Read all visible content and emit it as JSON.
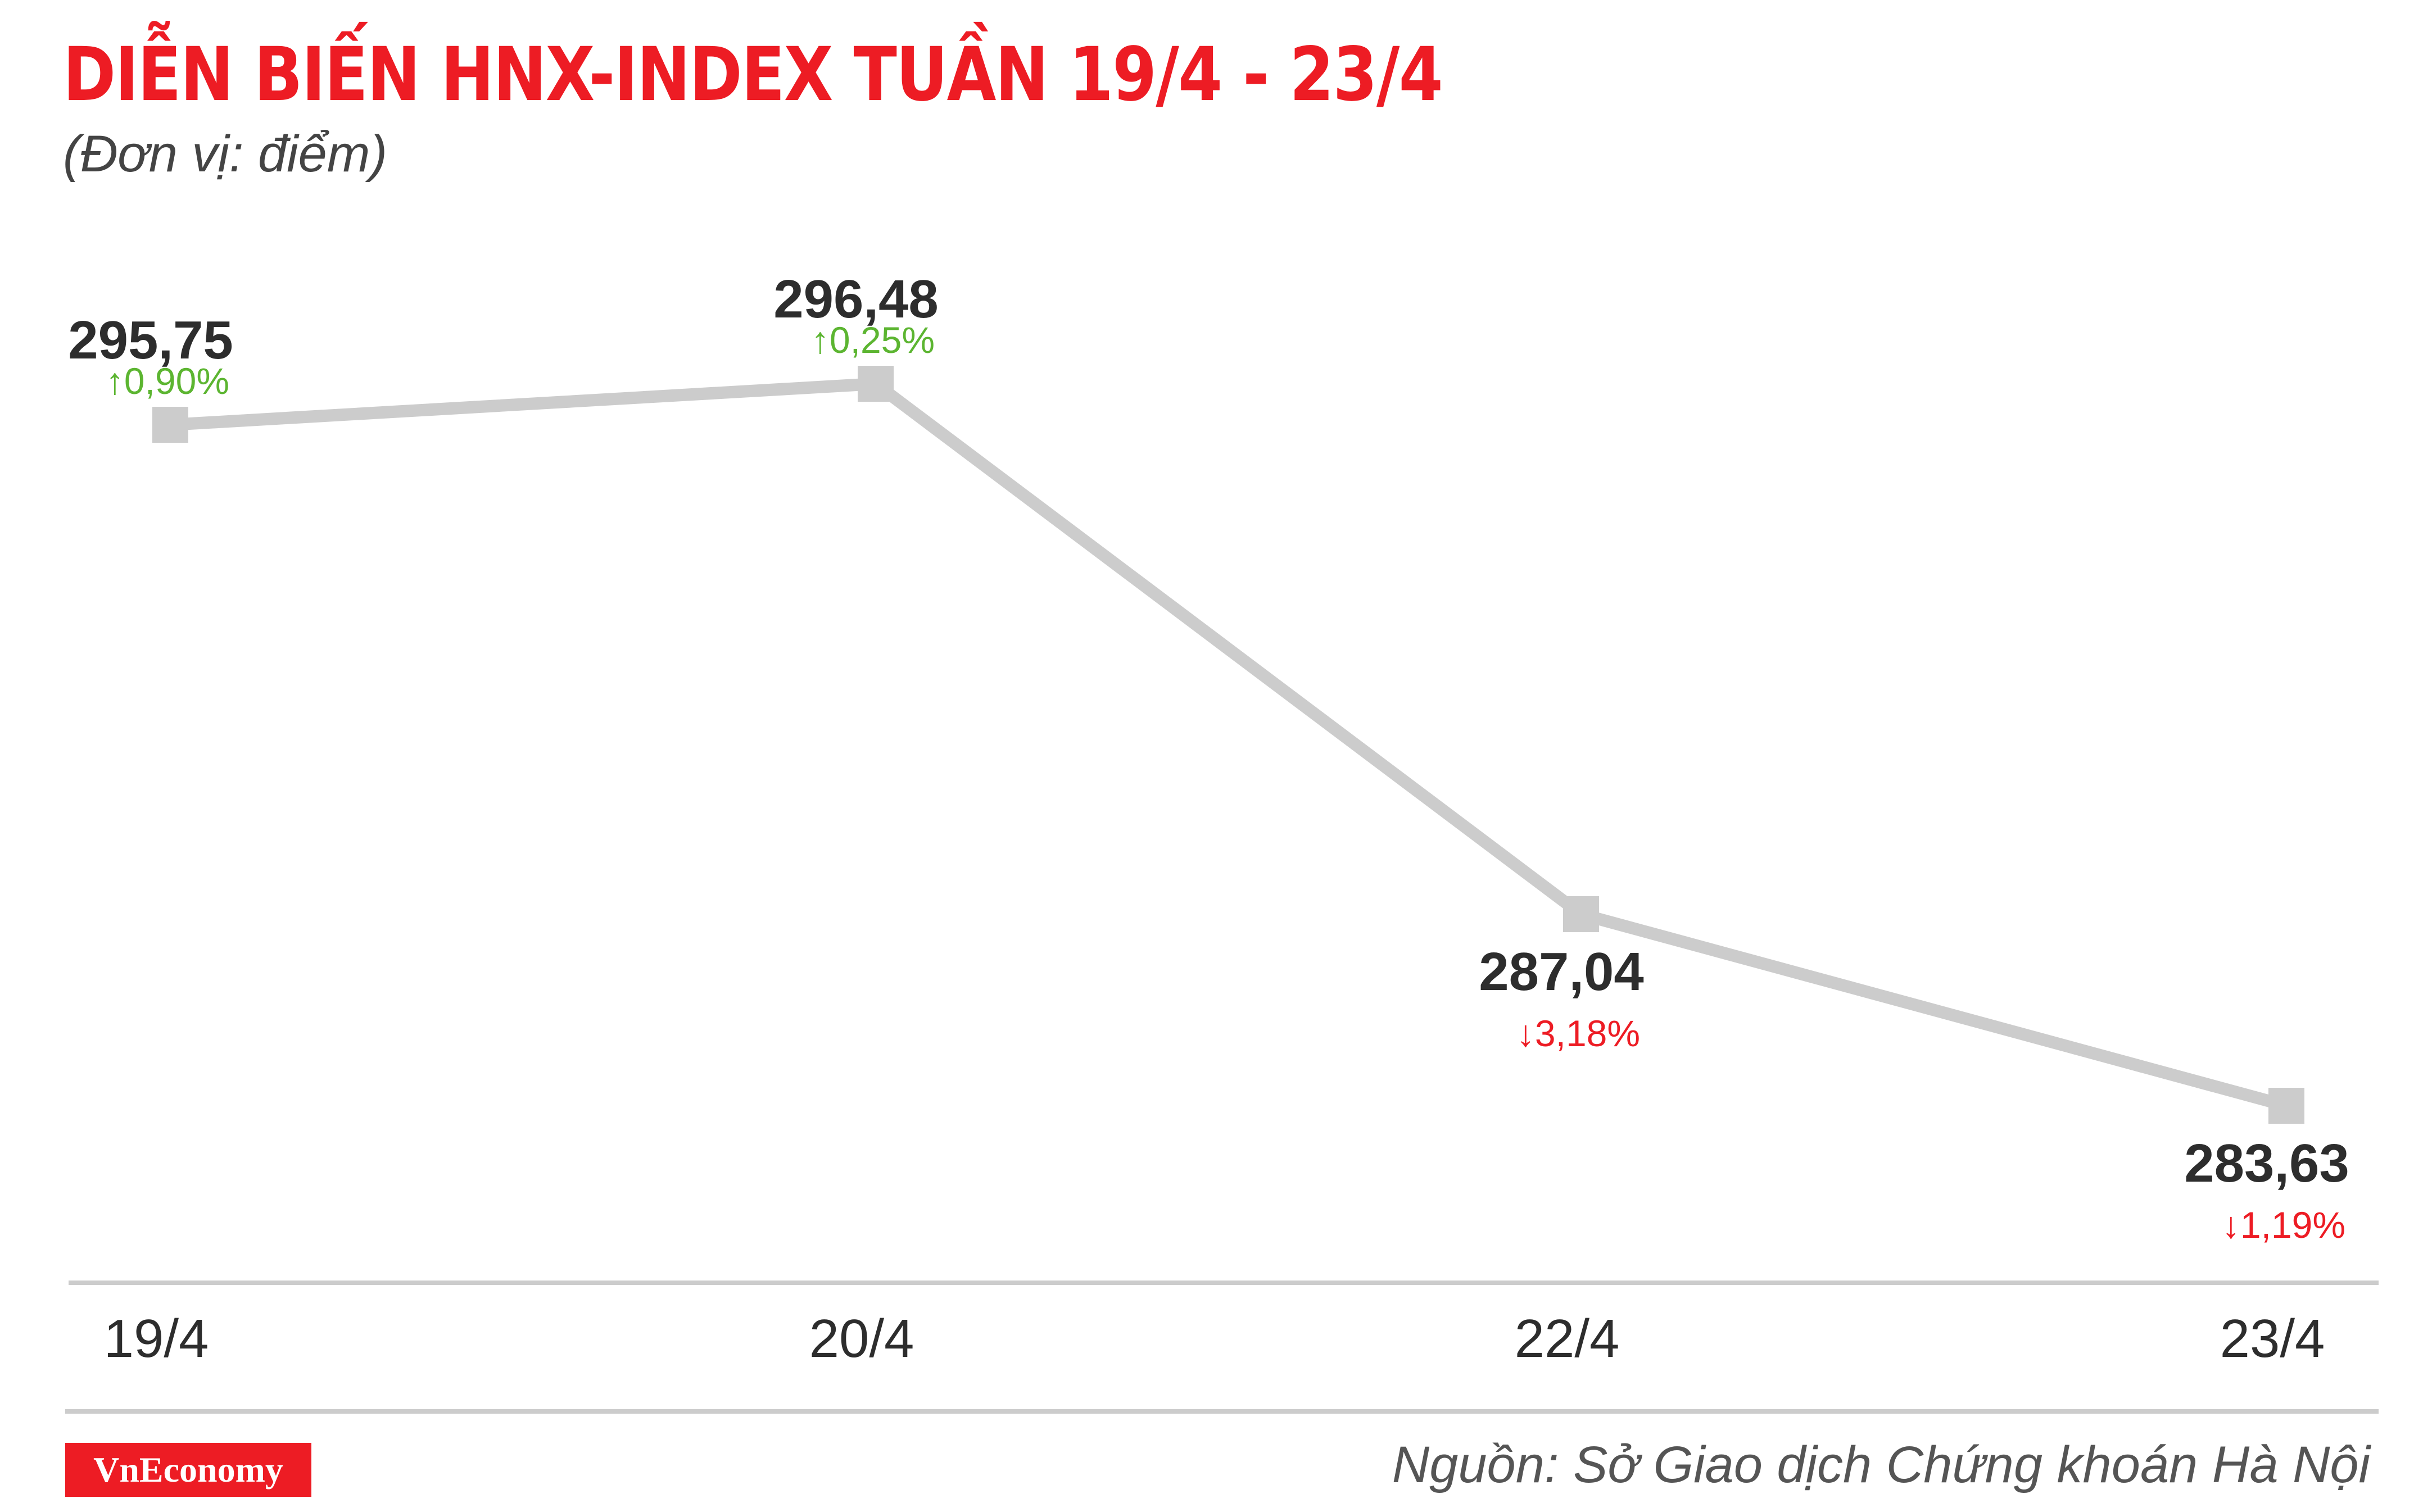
{
  "header": {
    "title": "DIỄN BIẾN HNX-INDEX TUẦN 19/4 - 23/4",
    "subtitle": "(Đơn vị: điểm)"
  },
  "footer": {
    "logo_text": "VnEconomy",
    "source": "Nguồn: Sở Giao dịch Chứng khoán Hà Nội"
  },
  "colors": {
    "title": "#ed1c24",
    "line": "#cccccc",
    "up": "#5cb531",
    "down": "#ed1c24",
    "axis": "#cccccc",
    "text": "#2d2d2d"
  },
  "chart_data": {
    "type": "line",
    "title": "DIỄN BIẾN HNX-INDEX TUẦN 19/4 - 23/4",
    "subtitle": "(Đơn vị: điểm)",
    "categories": [
      "19/4",
      "20/4",
      "22/4",
      "23/4"
    ],
    "values": [
      295.75,
      296.48,
      287.04,
      283.63
    ],
    "value_labels": [
      "295,75",
      "296,48",
      "287,04",
      "283,63"
    ],
    "changes": [
      {
        "arrow": "↑",
        "text": "0,90%",
        "direction": "up"
      },
      {
        "arrow": "↑",
        "text": "0,25%",
        "direction": "up"
      },
      {
        "arrow": "↓",
        "text": "3,18%",
        "direction": "down"
      },
      {
        "arrow": "↓",
        "text": "1,19%",
        "direction": "down"
      }
    ],
    "marker": "square",
    "grid": false,
    "legend": "none"
  }
}
